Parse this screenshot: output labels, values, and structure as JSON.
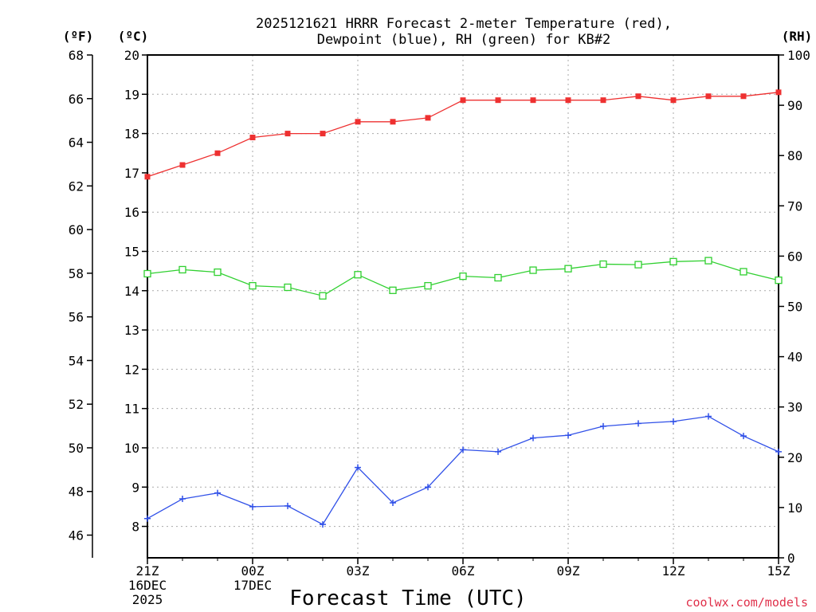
{
  "chart_data": {
    "type": "line",
    "title_line1": "2025121621 HRRR Forecast 2-meter Temperature (red),",
    "title_line2": "Dewpoint (blue), RH (green) for KB#2",
    "xlabel": "Forecast Time (UTC)",
    "credit": "coolwx.com/models",
    "units": {
      "fahrenheit": "(ºF)",
      "celsius": "(ºC)",
      "rh": "(RH)"
    },
    "x_hours": [
      0,
      1,
      2,
      3,
      4,
      5,
      6,
      7,
      8,
      9,
      10,
      11,
      12,
      13,
      14,
      15,
      16,
      17,
      18
    ],
    "x_ticks": [
      {
        "hour": 0,
        "lines": [
          "21Z",
          "16DEC",
          "2025"
        ]
      },
      {
        "hour": 3,
        "lines": [
          "00Z",
          "17DEC"
        ]
      },
      {
        "hour": 6,
        "lines": [
          "03Z"
        ]
      },
      {
        "hour": 9,
        "lines": [
          "06Z"
        ]
      },
      {
        "hour": 12,
        "lines": [
          "09Z"
        ]
      },
      {
        "hour": 15,
        "lines": [
          "12Z"
        ]
      },
      {
        "hour": 18,
        "lines": [
          "15Z"
        ]
      }
    ],
    "celsius_axis": {
      "min": 7.2,
      "max": 20,
      "ticks": [
        "8",
        "9",
        "10",
        "11",
        "12",
        "13",
        "14",
        "15",
        "16",
        "17",
        "18",
        "19",
        "20"
      ]
    },
    "fahrenheit_ticks": [
      "46",
      "48",
      "50",
      "52",
      "54",
      "56",
      "58",
      "60",
      "62",
      "64",
      "66",
      "68"
    ],
    "rh_axis": {
      "min": 0,
      "max": 100,
      "ticks": [
        "0",
        "10",
        "20",
        "30",
        "40",
        "50",
        "60",
        "70",
        "80",
        "90",
        "100"
      ]
    },
    "series": [
      {
        "name": "2-meter Temperature",
        "axis": "celsius",
        "color": "#ee3030",
        "marker": "filled-square",
        "values": [
          16.9,
          17.2,
          17.5,
          17.9,
          18.0,
          18.0,
          18.3,
          18.3,
          18.4,
          18.85,
          18.85,
          18.85,
          18.85,
          18.85,
          18.95,
          18.85,
          18.95,
          18.95,
          19.05
        ]
      },
      {
        "name": "Dewpoint",
        "axis": "celsius",
        "color": "#3050e8",
        "marker": "plus",
        "values": [
          8.2,
          8.7,
          8.85,
          8.5,
          8.52,
          8.05,
          9.5,
          8.6,
          9.0,
          9.95,
          9.9,
          10.25,
          10.32,
          10.55,
          10.62,
          10.67,
          10.8,
          10.3,
          9.9
        ]
      },
      {
        "name": "RH",
        "axis": "rh",
        "color": "#30d030",
        "marker": "open-square",
        "values": [
          56.5,
          57.3,
          56.8,
          54.1,
          53.8,
          52.1,
          56.3,
          53.2,
          54.1,
          56.0,
          55.7,
          57.2,
          57.5,
          58.4,
          58.3,
          58.9,
          59.1,
          56.9,
          55.2
        ]
      }
    ]
  }
}
